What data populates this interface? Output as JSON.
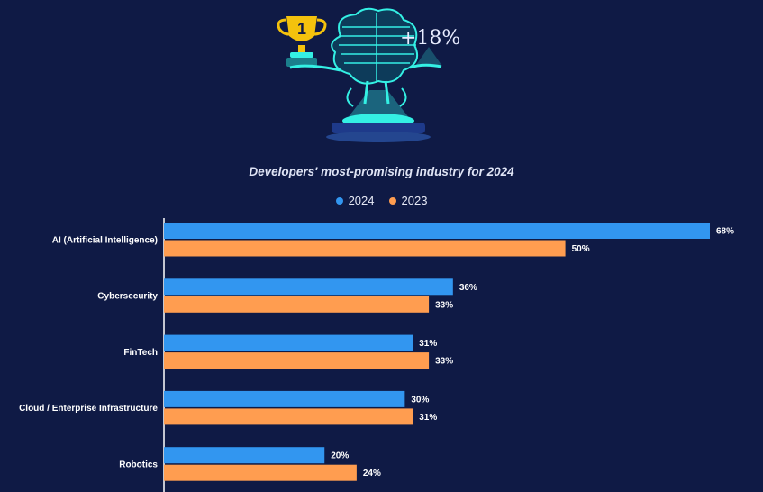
{
  "header": {
    "growth": "+18%",
    "trophy_rank": "1",
    "colors": {
      "glow": "#34f0e4",
      "trophy": "#f4c20d",
      "pedestal": "#1e3a8a"
    }
  },
  "chart_data": {
    "type": "bar",
    "orientation": "horizontal",
    "title": "Developers' most-promising industry for 2024",
    "legend": "top-center",
    "categories": [
      "AI (Artificial Intelligence)",
      "Cybersecurity",
      "FinTech",
      "Cloud / Enterprise Infrastructure",
      "Robotics"
    ],
    "series": [
      {
        "name": "2024",
        "color": "#3296f0",
        "values": [
          68,
          36,
          31,
          30,
          20
        ]
      },
      {
        "name": "2023",
        "color": "#ff9d50",
        "values": [
          50,
          33,
          33,
          31,
          24
        ]
      }
    ],
    "value_suffix": "%",
    "xlim": [
      0,
      68
    ]
  }
}
